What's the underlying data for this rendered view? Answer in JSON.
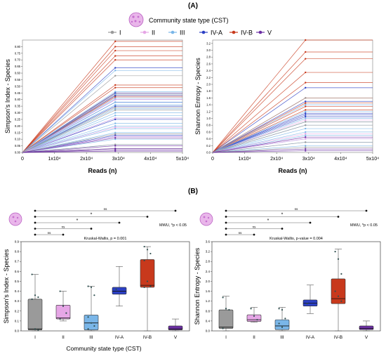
{
  "panel_labels": {
    "a": "(A)",
    "b": "(B)"
  },
  "legend": {
    "title": "Community state type (CST)",
    "icon": "microbiome-icon",
    "items": [
      {
        "label": "I",
        "color": "#9a9a9a"
      },
      {
        "label": "II",
        "color": "#e6a6e6"
      },
      {
        "label": "III",
        "color": "#7ab6e8"
      },
      {
        "label": "IV-A",
        "color": "#2b3fc4"
      },
      {
        "label": "IV-B",
        "color": "#c8391c"
      },
      {
        "label": "V",
        "color": "#6b2ea3"
      }
    ]
  },
  "colors": {
    "I": "#9a9a9a",
    "II": "#e6a6e6",
    "III": "#7ab6e8",
    "IV-A": "#2b3fc4",
    "IV-B": "#c8391c",
    "V": "#6b2ea3"
  },
  "chart_data": [
    {
      "type": "line",
      "panel": "A-left",
      "title": "",
      "xlabel": "Reads (n)",
      "ylabel": "Simpson's Index - Species",
      "xlim": [
        0,
        50000
      ],
      "ylim": [
        0,
        0.85
      ],
      "x_ticks": [
        0,
        10000,
        20000,
        30000,
        40000,
        50000
      ],
      "x_tick_labels": [
        "0",
        "1x10⁴",
        "2x10⁴",
        "3x10⁴",
        "4x10⁴",
        "5x10⁴"
      ],
      "y_ticks": [
        0,
        0.05,
        0.1,
        0.15,
        0.2,
        0.25,
        0.3,
        0.35,
        0.4,
        0.45,
        0.5,
        0.55,
        0.6,
        0.65,
        0.7,
        0.75,
        0.8
      ],
      "y_tick_labels": [
        "0.00",
        "0.05",
        "0.10",
        "0.15",
        "0.20",
        "0.25",
        "0.30",
        "0.35",
        "0.40",
        "0.45",
        "0.50",
        "0.55",
        "0.60",
        "0.65",
        "0.70",
        "0.75",
        "0.80"
      ],
      "saturation_x": 29000,
      "series": [
        {
          "group": "IV-B",
          "values": [
            0.84,
            0.8,
            0.77,
            0.73,
            0.7,
            0.51,
            0.49,
            0.45,
            0.44,
            0.43,
            0.42
          ]
        },
        {
          "group": "IV-A",
          "values": [
            0.64,
            0.45,
            0.43,
            0.4,
            0.38,
            0.35,
            0.25,
            0.13,
            0.12
          ]
        },
        {
          "group": "III",
          "values": [
            0.62,
            0.46,
            0.44,
            0.41,
            0.38,
            0.36,
            0.33,
            0.3,
            0.28,
            0.26,
            0.22,
            0.2,
            0.18,
            0.15,
            0.1,
            0.06
          ]
        },
        {
          "group": "II",
          "values": [
            0.4,
            0.26,
            0.19,
            0.12
          ]
        },
        {
          "group": "I",
          "values": [
            0.58,
            0.34,
            0.32,
            0.14,
            0.06,
            0.03
          ]
        },
        {
          "group": "V",
          "values": [
            0.11,
            0.05,
            0.03,
            0.02,
            0.01
          ]
        }
      ]
    },
    {
      "type": "line",
      "panel": "A-right",
      "title": "",
      "xlabel": "Reads (n)",
      "ylabel": "Shannon Entropy - Species",
      "xlim": [
        0,
        50000
      ],
      "ylim": [
        0,
        3.3
      ],
      "x_ticks": [
        0,
        10000,
        20000,
        30000,
        40000,
        50000
      ],
      "x_tick_labels": [
        "0",
        "1x10⁴",
        "2x10⁴",
        "3x10⁴",
        "4x10⁴",
        "5x10⁴"
      ],
      "y_ticks": [
        0,
        0.2,
        0.4,
        0.6,
        0.8,
        1.0,
        1.2,
        1.4,
        1.6,
        1.8,
        2.0,
        2.2,
        2.4,
        2.6,
        2.8,
        3.0,
        3.2
      ],
      "y_tick_labels": [
        "0.0",
        "0.2",
        "0.4",
        "0.6",
        "0.8",
        "1.0",
        "1.2",
        "1.4",
        "1.6",
        "1.8",
        "2.0",
        "2.2",
        "2.4",
        "2.6",
        "2.8",
        "3.0",
        "3.2"
      ],
      "saturation_x": 29000,
      "series": [
        {
          "group": "IV-B",
          "values": [
            3.3,
            2.95,
            2.75,
            2.35,
            2.05,
            1.6,
            1.45,
            1.35,
            1.25
          ]
        },
        {
          "group": "IV-A",
          "values": [
            1.9,
            1.5,
            1.15,
            1.1,
            1.05
          ]
        },
        {
          "group": "III",
          "values": [
            1.4,
            1.2,
            1.0,
            0.9,
            0.8,
            0.7,
            0.6,
            0.5,
            0.4,
            0.3,
            0.2
          ]
        },
        {
          "group": "II",
          "values": [
            0.95,
            0.55,
            0.45,
            0.4
          ]
        },
        {
          "group": "I",
          "values": [
            1.6,
            0.9,
            0.8,
            0.3,
            0.15
          ]
        },
        {
          "group": "V",
          "values": [
            0.45,
            0.1,
            0.05
          ]
        }
      ]
    },
    {
      "type": "box",
      "panel": "B-left",
      "ylabel": "Simpson's Index - Species",
      "xlabel": "Community state type (CST)",
      "categories": [
        "I",
        "II",
        "III",
        "IV-A",
        "IV-B",
        "V"
      ],
      "ylim": [
        0,
        0.9
      ],
      "y_ticks": [
        0,
        0.1,
        0.2,
        0.3,
        0.4,
        0.5,
        0.6,
        0.7,
        0.8,
        0.9
      ],
      "y_tick_labels": [
        "0.0",
        "0.1",
        "0.2",
        "0.3",
        "0.4",
        "0.5",
        "0.6",
        "0.7",
        "0.8",
        "0.9"
      ],
      "test_label": "Kruskal-Wallis, p = 0.001",
      "mwu_note": "MWU, *p < 0.05",
      "boxes": [
        {
          "cat": "I",
          "min": 0.0,
          "q1": 0.01,
          "median": 0.02,
          "q3": 0.32,
          "max": 0.57,
          "points": [
            0.57,
            0.36,
            0.34,
            0.32,
            0.02,
            0.01
          ]
        },
        {
          "cat": "II",
          "min": 0.1,
          "q1": 0.12,
          "median": 0.13,
          "q3": 0.26,
          "max": 0.4,
          "points": [
            0.4,
            0.25,
            0.18,
            0.12
          ]
        },
        {
          "cat": "III",
          "min": 0.0,
          "q1": 0.01,
          "median": 0.08,
          "q3": 0.16,
          "max": 0.45,
          "points": [
            0.45,
            0.44,
            0.36,
            0.14,
            0.08,
            0.05,
            0.02
          ]
        },
        {
          "cat": "IV-A",
          "min": 0.25,
          "q1": 0.37,
          "median": 0.4,
          "q3": 0.44,
          "max": 0.65,
          "points": [
            0.42
          ]
        },
        {
          "cat": "IV-B",
          "min": 0.0,
          "q1": 0.44,
          "median": 0.46,
          "q3": 0.72,
          "max": 0.85,
          "points": [
            0.85,
            0.82,
            0.78,
            0.71,
            0.5,
            0.45,
            0.44
          ]
        },
        {
          "cat": "V",
          "min": 0.0,
          "q1": 0.01,
          "median": 0.02,
          "q3": 0.05,
          "max": 0.12,
          "points": []
        }
      ],
      "comparisons": [
        {
          "from": "I",
          "to": "V",
          "label": "ns"
        },
        {
          "from": "I",
          "to": "IV-B",
          "label": "*"
        },
        {
          "from": "I",
          "to": "IV-A",
          "label": "*"
        },
        {
          "from": "I",
          "to": "III",
          "label": "ns"
        },
        {
          "from": "I",
          "to": "II",
          "label": "ns"
        }
      ]
    },
    {
      "type": "box",
      "panel": "B-right",
      "ylabel": "Shannon Entropy - Species",
      "xlabel": "",
      "categories": [
        "I",
        "II",
        "III",
        "IV-A",
        "IV-B",
        "V"
      ],
      "ylim": [
        0,
        3.6
      ],
      "y_ticks": [
        0,
        0.4,
        0.8,
        1.2,
        1.6,
        2.0,
        2.4,
        2.8,
        3.2,
        3.6
      ],
      "y_tick_labels": [
        "0.0",
        "0.4",
        "0.8",
        "1.2",
        "1.6",
        "2.0",
        "2.4",
        "2.8",
        "3.2",
        "3.6"
      ],
      "test_label": "Kruskal-Wallis, p-value = 0.004",
      "mwu_note": "MWU, *p < 0.05",
      "boxes": [
        {
          "cat": "I",
          "min": 0.0,
          "q1": 0.1,
          "median": 0.15,
          "q3": 0.85,
          "max": 1.4,
          "points": [
            1.35,
            0.9,
            0.85,
            0.1
          ]
        },
        {
          "cat": "II",
          "min": 0.35,
          "q1": 0.38,
          "median": 0.45,
          "q3": 0.65,
          "max": 0.95,
          "points": [
            0.9,
            0.6,
            0.45
          ]
        },
        {
          "cat": "III",
          "min": 0.0,
          "q1": 0.05,
          "median": 0.2,
          "q3": 0.45,
          "max": 0.95,
          "points": [
            0.9,
            0.85,
            0.5,
            0.3,
            0.15
          ]
        },
        {
          "cat": "IV-A",
          "min": 0.7,
          "q1": 1.0,
          "median": 1.12,
          "q3": 1.25,
          "max": 1.85,
          "points": [
            1.1
          ]
        },
        {
          "cat": "IV-B",
          "min": 0.0,
          "q1": 1.1,
          "median": 1.3,
          "q3": 2.1,
          "max": 3.3,
          "points": [
            3.2,
            2.9,
            2.3,
            1.6,
            1.4,
            1.2
          ]
        },
        {
          "cat": "V",
          "min": 0.0,
          "q1": 0.05,
          "median": 0.1,
          "q3": 0.2,
          "max": 0.4,
          "points": []
        }
      ],
      "comparisons": [
        {
          "from": "I",
          "to": "V",
          "label": "ns"
        },
        {
          "from": "I",
          "to": "IV-B",
          "label": "*"
        },
        {
          "from": "I",
          "to": "IV-A",
          "label": "*"
        },
        {
          "from": "I",
          "to": "III",
          "label": "ns"
        },
        {
          "from": "I",
          "to": "II",
          "label": "ns"
        }
      ]
    }
  ]
}
